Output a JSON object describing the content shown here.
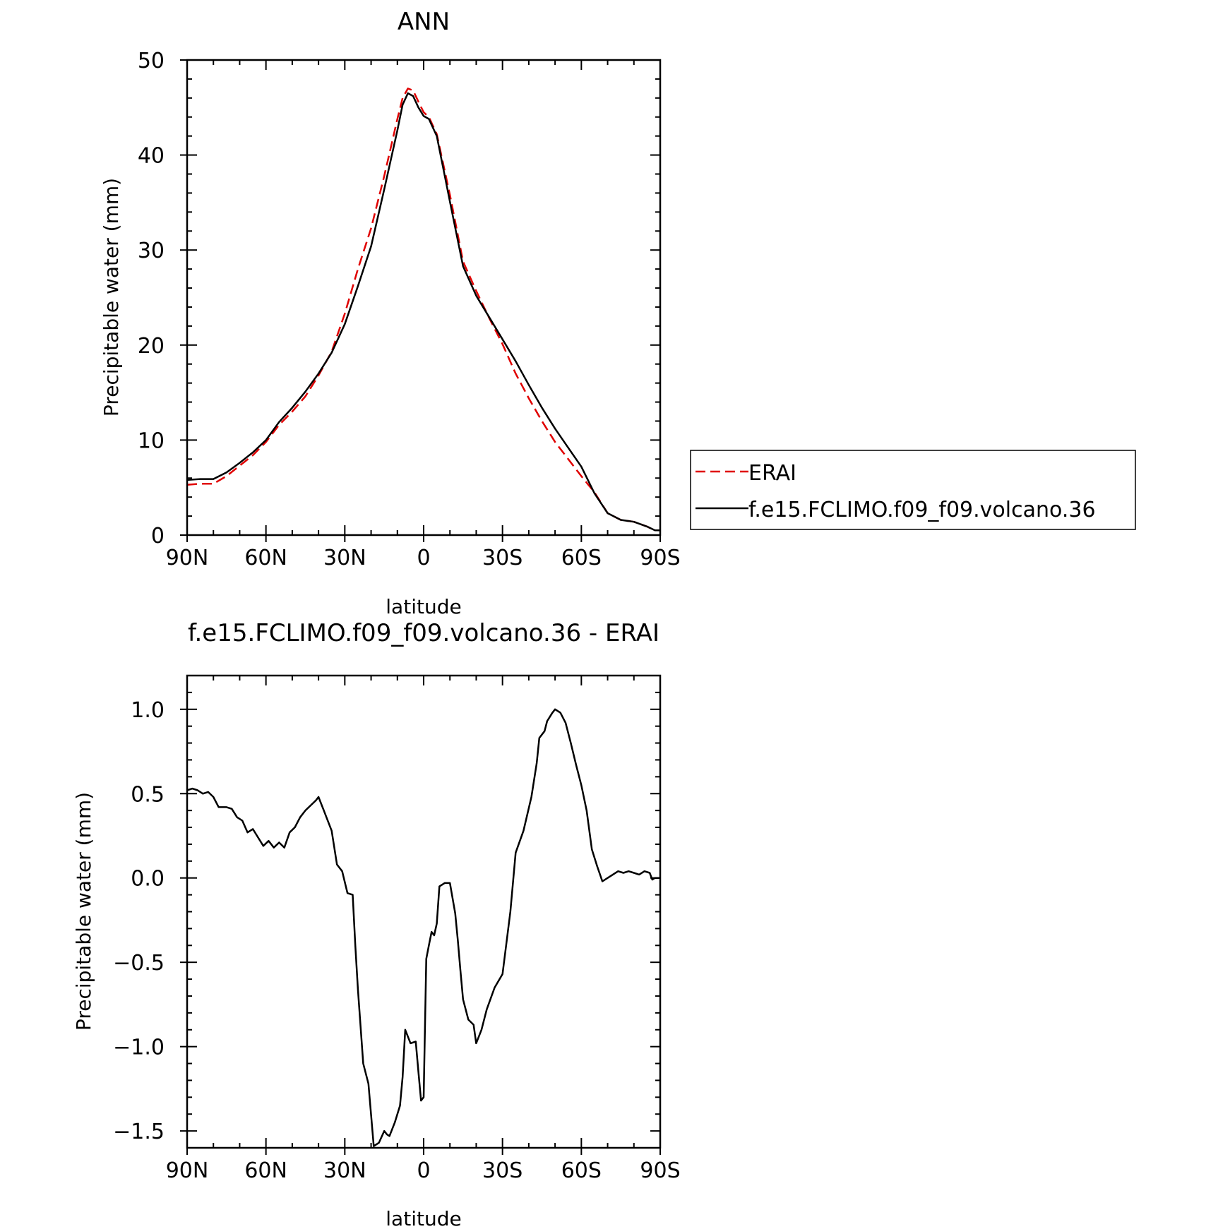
{
  "chart_data": [
    {
      "type": "line",
      "title": "ANN",
      "xlabel": "latitude",
      "ylabel": "Precipitable water (mm)",
      "xlim": [
        90,
        -90
      ],
      "ylim": [
        0,
        50
      ],
      "x_ticks": [
        90,
        60,
        30,
        0,
        -30,
        -60,
        -90
      ],
      "x_tick_labels": [
        "90N",
        "60N",
        "30N",
        "0",
        "30S",
        "60S",
        "90S"
      ],
      "y_ticks": [
        0,
        10,
        20,
        30,
        40,
        50
      ],
      "y_tick_labels": [
        "0",
        "10",
        "20",
        "30",
        "40",
        "50"
      ],
      "legend": {
        "placement": "right",
        "entries": [
          {
            "name": "ERAI",
            "color": "#e00000",
            "dash": true
          },
          {
            "name": "f.e15.FCLIMO.f09_f09.volcano.36",
            "color": "#000000",
            "dash": false
          }
        ]
      },
      "series": [
        {
          "name": "ERAI",
          "color": "#e00000",
          "style": "dashed",
          "x": [
            90,
            85,
            80,
            75,
            70,
            65,
            60,
            55,
            50,
            45,
            40,
            35,
            30,
            25,
            20,
            15,
            10,
            8,
            6,
            4,
            2,
            0,
            -2,
            -5,
            -10,
            -15,
            -20,
            -25,
            -30,
            -35,
            -40,
            -45,
            -50,
            -55,
            -60,
            -65,
            -70,
            -75,
            -80,
            -85,
            -88,
            -90
          ],
          "y": [
            5.3,
            5.4,
            5.4,
            6.2,
            7.3,
            8.4,
            9.8,
            11.6,
            13.0,
            14.6,
            16.8,
            19.3,
            23.3,
            28.0,
            32.3,
            37.8,
            43.8,
            46.0,
            47.0,
            46.8,
            45.6,
            44.5,
            44.0,
            42.2,
            35.8,
            28.8,
            25.7,
            22.8,
            20.1,
            17.0,
            14.4,
            12.0,
            9.8,
            8.0,
            6.2,
            4.5,
            2.3,
            1.6,
            1.4,
            0.9,
            0.5,
            0.5
          ]
        },
        {
          "name": "f.e15.FCLIMO.f09_f09.volcano.36",
          "color": "#000000",
          "style": "solid",
          "x": [
            90,
            85,
            80,
            75,
            70,
            65,
            60,
            55,
            50,
            45,
            40,
            35,
            30,
            25,
            20,
            15,
            10,
            8,
            6,
            4,
            2,
            0,
            -2,
            -5,
            -10,
            -15,
            -20,
            -25,
            -30,
            -35,
            -40,
            -45,
            -50,
            -55,
            -60,
            -65,
            -70,
            -75,
            -80,
            -85,
            -88,
            -90
          ],
          "y": [
            5.8,
            5.9,
            5.9,
            6.6,
            7.6,
            8.7,
            10.0,
            11.9,
            13.4,
            15.1,
            17.0,
            19.2,
            22.2,
            26.2,
            30.4,
            36.4,
            42.6,
            45.3,
            46.5,
            46.2,
            45.0,
            44.1,
            43.8,
            42.0,
            35.1,
            28.3,
            25.2,
            22.9,
            20.6,
            18.3,
            15.8,
            13.4,
            11.2,
            9.2,
            7.2,
            4.4,
            2.3,
            1.6,
            1.4,
            0.9,
            0.5,
            0.5
          ]
        }
      ]
    },
    {
      "type": "line",
      "title": "f.e15.FCLIMO.f09_f09.volcano.36 - ERAI",
      "xlabel": "latitude",
      "ylabel": "Precipitable water (mm)",
      "xlim": [
        90,
        -90
      ],
      "ylim": [
        -1.6,
        1.2
      ],
      "x_ticks": [
        90,
        60,
        30,
        0,
        -30,
        -60,
        -90
      ],
      "x_tick_labels": [
        "90N",
        "60N",
        "30N",
        "0",
        "30S",
        "60S",
        "90S"
      ],
      "y_ticks": [
        1.0,
        0.5,
        0.0,
        -0.5,
        -1.0,
        -1.5
      ],
      "y_tick_labels": [
        "1.0",
        "0.5",
        "0.0",
        "−0.5",
        "−1.0",
        "−1.5"
      ],
      "series": [
        {
          "color": "#000000",
          "style": "solid",
          "x": [
            90,
            88,
            86,
            84,
            82,
            80,
            78,
            75,
            73,
            71,
            69,
            67,
            65,
            63,
            61,
            59,
            57,
            55,
            53,
            51,
            49,
            47,
            45,
            43,
            41,
            40,
            38,
            37,
            35,
            33,
            31,
            29,
            27,
            26,
            25,
            23,
            21,
            19,
            17,
            15,
            14,
            13,
            11,
            9,
            8,
            7,
            5,
            3,
            2,
            1,
            0,
            -1,
            -2,
            -3,
            -4,
            -5,
            -6,
            -8,
            -10,
            -12,
            -13,
            -14,
            -15,
            -17,
            -19,
            -20,
            -22,
            -24,
            -27,
            -30,
            -33,
            -35,
            -38,
            -41,
            -43,
            -44,
            -46,
            -47,
            -49,
            -50,
            -52,
            -54,
            -56,
            -58,
            -60,
            -62,
            -64,
            -66,
            -68,
            -70,
            -72,
            -74,
            -76,
            -78,
            -80,
            -82,
            -84,
            -86,
            -87,
            -88,
            -90
          ],
          "y": [
            0.52,
            0.53,
            0.52,
            0.5,
            0.51,
            0.48,
            0.42,
            0.42,
            0.41,
            0.36,
            0.34,
            0.27,
            0.29,
            0.24,
            0.19,
            0.22,
            0.18,
            0.21,
            0.18,
            0.27,
            0.3,
            0.36,
            0.4,
            0.43,
            0.46,
            0.48,
            0.4,
            0.36,
            0.28,
            0.08,
            0.04,
            -0.09,
            -0.1,
            -0.4,
            -0.66,
            -1.1,
            -1.22,
            -1.59,
            -1.57,
            -1.5,
            -1.52,
            -1.53,
            -1.45,
            -1.35,
            -1.18,
            -0.9,
            -0.98,
            -0.97,
            -1.15,
            -1.32,
            -1.3,
            -0.48,
            -0.4,
            -0.32,
            -0.34,
            -0.27,
            -0.05,
            -0.03,
            -0.03,
            -0.21,
            -0.37,
            -0.55,
            -0.72,
            -0.84,
            -0.87,
            -0.98,
            -0.9,
            -0.78,
            -0.65,
            -0.57,
            -0.2,
            0.15,
            0.28,
            0.48,
            0.68,
            0.83,
            0.87,
            0.93,
            0.98,
            1.0,
            0.98,
            0.92,
            0.8,
            0.67,
            0.55,
            0.4,
            0.17,
            0.07,
            -0.02,
            0.0,
            0.02,
            0.04,
            0.03,
            0.04,
            0.03,
            0.02,
            0.04,
            0.03,
            -0.01,
            0.0,
            0.0
          ]
        }
      ]
    }
  ]
}
